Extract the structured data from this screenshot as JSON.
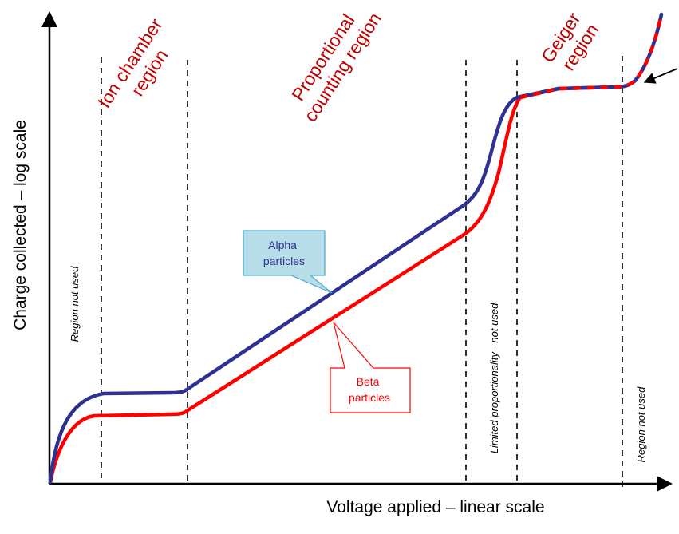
{
  "chart_data": {
    "type": "line",
    "xlabel": "Voltage applied – linear scale",
    "ylabel": "Charge collected – log scale",
    "yscale": "log",
    "grid": false,
    "series": [
      {
        "name": "Alpha particles",
        "color": "#2e3192"
      },
      {
        "name": "Beta particles",
        "color": "#ff0000"
      }
    ],
    "regions": [
      {
        "label_lines": [
          "Ion chamber",
          "region"
        ]
      },
      {
        "label_lines": [
          "Proportional",
          "counting region"
        ]
      },
      {
        "label_lines": [
          "Geiger",
          "region"
        ]
      }
    ],
    "vertical_notes": [
      "Region  not used",
      "Limited proportionality - not used",
      "Region  not used"
    ],
    "callouts": [
      {
        "lines": [
          "Alpha",
          "particles"
        ],
        "text_color": "#2e3192",
        "fill": "#b7dde8",
        "border": "#4bacc6"
      },
      {
        "lines": [
          "Beta",
          "particles"
        ],
        "text_color": "#ff0000",
        "fill": "#ffffff",
        "border": "#ff0000"
      }
    ]
  }
}
